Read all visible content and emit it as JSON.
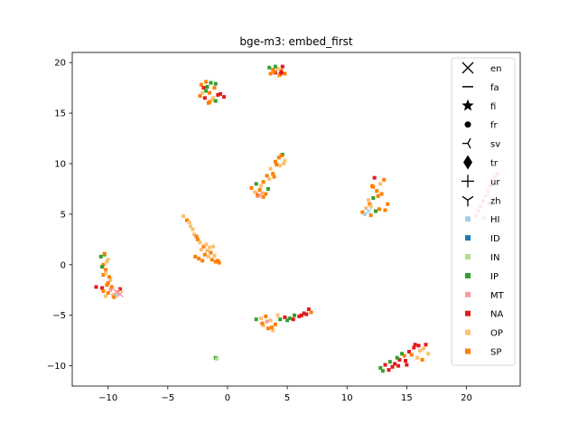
{
  "chart_data": {
    "type": "scatter",
    "title": "bge-m3: embed_first",
    "xlabel": "",
    "ylabel": "",
    "xlim": [
      -13,
      24.5
    ],
    "ylim": [
      -12,
      21
    ],
    "xticks": [
      -10,
      -5,
      0,
      5,
      10,
      15,
      20
    ],
    "yticks": [
      -10,
      -5,
      0,
      5,
      10,
      15,
      20
    ],
    "legend_position": "upper right",
    "marker_legend": [
      {
        "label": "en",
        "marker": "x"
      },
      {
        "label": "fa",
        "marker": "hline"
      },
      {
        "label": "fi",
        "marker": "star"
      },
      {
        "label": "fr",
        "marker": "dot"
      },
      {
        "label": "sv",
        "marker": "tri_left"
      },
      {
        "label": "tr",
        "marker": "thin_diamond"
      },
      {
        "label": "ur",
        "marker": "plus"
      },
      {
        "label": "zh",
        "marker": "tri_down"
      }
    ],
    "color_legend": [
      {
        "label": "HI",
        "color": "#a6cee3"
      },
      {
        "label": "ID",
        "color": "#1f78b4"
      },
      {
        "label": "IN",
        "color": "#b2df8a"
      },
      {
        "label": "IP",
        "color": "#33a02c"
      },
      {
        "label": "MT",
        "color": "#fb9a99"
      },
      {
        "label": "NA",
        "color": "#e31a1c"
      },
      {
        "label": "OP",
        "color": "#fdbf6f"
      },
      {
        "label": "SP",
        "color": "#ff7f00"
      }
    ],
    "clusters": [
      {
        "x": [
          -11,
          -10.5,
          -10.4,
          -10.2,
          -10.0,
          -10.3,
          -9.8,
          -10.1,
          -10.0,
          -9.6,
          -9.2,
          -9.0,
          -10.6,
          -10.4,
          -10.2,
          -10.0,
          -9.8,
          -10.3,
          -10.1,
          -9.9,
          -10.5,
          -10.4,
          -10.2,
          -9.7,
          -9.5,
          -9.3
        ],
        "y": [
          -2.2,
          -2.3,
          -1.0,
          -0.5,
          0.5,
          1.0,
          -1.5,
          -2.0,
          -2.8,
          -3.0,
          -2.7,
          -2.4,
          0.8,
          0.0,
          -0.8,
          -1.8,
          -2.5,
          1.1,
          0.3,
          -1.2,
          -0.2,
          -2.6,
          -3.1,
          -2.2,
          -3.2,
          -2.9
        ],
        "colors": [
          "NA",
          "NA",
          "SP",
          "SP",
          "OP",
          "IP",
          "OP",
          "SP",
          "SP",
          "OP",
          "SP",
          "NA",
          "IP",
          "SP",
          "OP",
          "SP",
          "MT",
          "SP",
          "OP",
          "SP",
          "IP",
          "SP",
          "OP",
          "SP",
          "SP",
          "HI"
        ]
      },
      {
        "x": [
          -2.2,
          -2.0,
          -1.8,
          -1.5,
          -1.2,
          -1.0,
          -1.6,
          -1.9,
          -2.1,
          -1.4,
          -1.1,
          -0.8,
          -1.7,
          -1.3,
          -0.3,
          -0.6,
          -1.8,
          -1.5,
          -1.0,
          -2.3
        ],
        "y": [
          17.8,
          17.5,
          17.2,
          17.0,
          16.5,
          16.2,
          16.0,
          16.5,
          17.0,
          18.0,
          17.5,
          16.8,
          17.6,
          16.3,
          16.6,
          16.9,
          18.1,
          16.1,
          17.9,
          16.7
        ],
        "colors": [
          "SP",
          "NA",
          "IP",
          "SP",
          "OP",
          "IP",
          "SP",
          "NA",
          "OP",
          "IP",
          "SP",
          "NA",
          "IP",
          "OP",
          "NA",
          "NA",
          "SP",
          "SP",
          "IP",
          "SP"
        ]
      },
      {
        "x": [
          3.5,
          3.8,
          4.0,
          4.2,
          4.5,
          4.8,
          3.6,
          4.3,
          4.6,
          4.0,
          3.9,
          4.4
        ],
        "y": [
          19.5,
          19.3,
          19.0,
          19.4,
          19.2,
          18.9,
          18.9,
          18.7,
          19.6,
          19.6,
          19.1,
          18.8
        ],
        "colors": [
          "IP",
          "SP",
          "NA",
          "OP",
          "SP",
          "SP",
          "SP",
          "OP",
          "NA",
          "IP",
          "SP",
          "SP"
        ]
      },
      {
        "x": [
          2.0,
          2.3,
          2.6,
          2.8,
          3.0,
          3.3,
          3.6,
          4.0,
          4.3,
          4.6,
          4.8,
          3.2,
          3.8,
          4.4,
          2.4,
          2.7,
          3.5,
          4.1,
          4.5,
          3.0,
          2.5,
          3.4,
          3.9,
          4.7,
          2.9
        ],
        "y": [
          7.6,
          7.2,
          6.8,
          7.8,
          8.2,
          8.8,
          9.5,
          10.2,
          10.6,
          10.9,
          10.3,
          7.0,
          9.0,
          9.8,
          8.0,
          7.4,
          8.5,
          9.9,
          10.8,
          6.7,
          6.9,
          7.5,
          8.7,
          10.0,
          7.1
        ],
        "colors": [
          "SP",
          "OP",
          "MT",
          "OP",
          "SP",
          "SP",
          "OP",
          "SP",
          "SP",
          "IP",
          "OP",
          "SP",
          "SP",
          "OP",
          "IP",
          "SP",
          "OP",
          "SP",
          "SP",
          "SP",
          "SP",
          "IP",
          "SP",
          "OP",
          "OP"
        ]
      },
      {
        "x": [
          -3.7,
          -3.4,
          -3.1,
          -2.8,
          -2.5,
          -2.2,
          -1.9,
          -1.6,
          -1.3,
          -1.0,
          -0.7,
          -3.2,
          -2.9,
          -2.6,
          -2.3,
          -2.0,
          -1.7,
          -1.4,
          -1.1,
          -0.8,
          -2.7,
          -2.4,
          -2.1,
          -1.8,
          -1.5,
          -1.2
        ],
        "y": [
          4.8,
          4.4,
          3.8,
          3.0,
          2.5,
          1.5,
          1.0,
          0.8,
          0.5,
          0.3,
          0.2,
          4.2,
          3.5,
          2.8,
          2.2,
          1.8,
          1.4,
          1.2,
          0.9,
          0.4,
          0.8,
          0.6,
          0.4,
          2.0,
          1.7,
          1.8
        ],
        "colors": [
          "OP",
          "SP",
          "OP",
          "OP",
          "SP",
          "OP",
          "SP",
          "OP",
          "SP",
          "SP",
          "SP",
          "OP",
          "OP",
          "SP",
          "OP",
          "SP",
          "OP",
          "SP",
          "OP",
          "SP",
          "SP",
          "SP",
          "SP",
          "OP",
          "OP",
          "OP"
        ]
      },
      {
        "x": [
          11.3,
          11.6,
          11.9,
          12.2,
          12.5,
          12.8,
          13.1,
          13.4,
          12.0,
          12.4,
          12.7,
          12.1,
          11.8,
          12.3,
          12.9,
          13.2,
          11.5,
          12.6,
          12.2,
          12.0
        ],
        "y": [
          5.2,
          5.6,
          6.0,
          6.6,
          7.3,
          8.0,
          8.4,
          6.0,
          4.9,
          5.3,
          5.5,
          7.8,
          6.4,
          8.6,
          7.0,
          5.4,
          5.0,
          6.8,
          7.7,
          5.8
        ],
        "colors": [
          "SP",
          "OP",
          "SP",
          "IP",
          "SP",
          "OP",
          "SP",
          "SP",
          "SP",
          "IP",
          "SP",
          "SP",
          "OP",
          "NA",
          "SP",
          "SP",
          "HI",
          "SP",
          "SP",
          "OP"
        ]
      },
      {
        "x": [
          2.4,
          2.8,
          3.2,
          3.6,
          4.0,
          4.4,
          4.8,
          5.2,
          5.6,
          6.0,
          6.4,
          6.8,
          7.0,
          3.0,
          3.4,
          3.8,
          4.2,
          2.9,
          3.3,
          5.0,
          5.5,
          6.2,
          6.6,
          3.7
        ],
        "y": [
          -5.4,
          -5.3,
          -5.1,
          -5.5,
          -5.9,
          -5.4,
          -5.2,
          -5.3,
          -5.0,
          -5.1,
          -4.8,
          -4.4,
          -4.7,
          -6.0,
          -6.3,
          -6.5,
          -5.0,
          -5.8,
          -5.6,
          -5.5,
          -5.4,
          -5.0,
          -4.9,
          -6.2
        ],
        "colors": [
          "IP",
          "OP",
          "SP",
          "OP",
          "SP",
          "IP",
          "NA",
          "IP",
          "IP",
          "NA",
          "NA",
          "NA",
          "SP",
          "OP",
          "SP",
          "OP",
          "OP",
          "SP",
          "MT",
          "IP",
          "NA",
          "NA",
          "NA",
          "SP"
        ]
      },
      {
        "x": [
          12.8,
          13.2,
          13.6,
          14.0,
          14.4,
          14.8,
          15.2,
          15.6,
          16.0,
          16.4,
          16.8,
          13.0,
          13.5,
          14.2,
          14.9,
          15.4,
          15.9,
          16.3,
          16.6,
          15.0,
          14.6,
          13.8,
          16.1,
          15.7,
          14.3
        ],
        "y": [
          -10.2,
          -9.9,
          -9.6,
          -9.8,
          -9.4,
          -9.0,
          -8.6,
          -8.2,
          -8.0,
          -8.3,
          -8.8,
          -10.5,
          -10.4,
          -9.2,
          -9.5,
          -8.9,
          -9.2,
          -9.4,
          -7.9,
          -9.9,
          -8.8,
          -10.1,
          -8.5,
          -7.9,
          -10.0
        ],
        "colors": [
          "IP",
          "NA",
          "IP",
          "NA",
          "NA",
          "SP",
          "NA",
          "NA",
          "NA",
          "OP",
          "OP",
          "IP",
          "NA",
          "IP",
          "NA",
          "SP",
          "OP",
          "SP",
          "NA",
          "NA",
          "IP",
          "NA",
          "OP",
          "NA",
          "NA"
        ]
      },
      {
        "x": [
          20.8,
          21.0,
          21.2,
          21.4,
          21.6,
          21.8,
          22.0,
          22.2,
          22.4,
          22.6,
          21.5,
          21.9
        ],
        "y": [
          4.8,
          5.3,
          5.8,
          6.3,
          6.8,
          7.3,
          7.8,
          8.3,
          8.7,
          9.0,
          4.6,
          6.1
        ],
        "colors": [
          "MT",
          "MT",
          "MT",
          "MT",
          "MT",
          "MT",
          "MT",
          "MT",
          "MT",
          "MT",
          "MT",
          "MT"
        ]
      },
      {
        "x": [
          -1.0,
          -0.9
        ],
        "y": [
          -9.2,
          -9.3
        ],
        "colors": [
          "IP",
          "IN"
        ]
      }
    ],
    "highlights": [
      {
        "x": 2.7,
        "y": 6.9,
        "marker": "x",
        "color": "MT"
      },
      {
        "x": 11.8,
        "y": 5.3,
        "marker": "x",
        "color": "HI"
      },
      {
        "x": -9.3,
        "y": -2.7,
        "marker": "x",
        "color": "MT"
      },
      {
        "x": -9.0,
        "y": -2.9,
        "marker": "x",
        "color": "MT"
      },
      {
        "x": 4.5,
        "y": 19.0,
        "marker": "dot",
        "color": "NA"
      }
    ]
  }
}
